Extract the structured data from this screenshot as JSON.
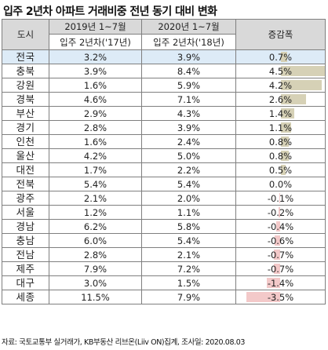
{
  "title": "입주 2년차 아파트 거래비중 전년 동기 대비 변화",
  "table": {
    "col_region": "도시",
    "col_2019_period": "2019년 1~7월",
    "col_2019_sub": "입주 2년차('17년)",
    "col_2020_period": "2020년 1~7월",
    "col_2020_sub": "입주 2년차('18년)",
    "col_change": "증감폭",
    "rows": [
      {
        "region": "전국",
        "y2019": "3.2%",
        "y2020": "3.9%",
        "change": "0.7%",
        "delta": 0.7,
        "highlight": true
      },
      {
        "region": "충북",
        "y2019": "3.9%",
        "y2020": "8.4%",
        "change": "4.5%",
        "delta": 4.5
      },
      {
        "region": "강원",
        "y2019": "1.6%",
        "y2020": "5.9%",
        "change": "4.2%",
        "delta": 4.2
      },
      {
        "region": "경북",
        "y2019": "4.6%",
        "y2020": "7.1%",
        "change": "2.6%",
        "delta": 2.6
      },
      {
        "region": "부산",
        "y2019": "2.9%",
        "y2020": "4.3%",
        "change": "1.4%",
        "delta": 1.4
      },
      {
        "region": "경기",
        "y2019": "2.8%",
        "y2020": "3.9%",
        "change": "1.1%",
        "delta": 1.1
      },
      {
        "region": "인천",
        "y2019": "1.6%",
        "y2020": "2.4%",
        "change": "0.8%",
        "delta": 0.8
      },
      {
        "region": "울산",
        "y2019": "4.2%",
        "y2020": "5.0%",
        "change": "0.8%",
        "delta": 0.8
      },
      {
        "region": "대전",
        "y2019": "1.7%",
        "y2020": "2.2%",
        "change": "0.5%",
        "delta": 0.5
      },
      {
        "region": "전북",
        "y2019": "5.4%",
        "y2020": "5.4%",
        "change": "0.0%",
        "delta": 0.0
      },
      {
        "region": "광주",
        "y2019": "2.1%",
        "y2020": "2.0%",
        "change": "-0.1%",
        "delta": -0.1
      },
      {
        "region": "서울",
        "y2019": "1.2%",
        "y2020": "1.1%",
        "change": "-0.2%",
        "delta": -0.2
      },
      {
        "region": "경남",
        "y2019": "6.2%",
        "y2020": "5.8%",
        "change": "-0.4%",
        "delta": -0.4
      },
      {
        "region": "충남",
        "y2019": "6.0%",
        "y2020": "5.4%",
        "change": "-0.6%",
        "delta": -0.6
      },
      {
        "region": "전남",
        "y2019": "2.8%",
        "y2020": "2.1%",
        "change": "-0.7%",
        "delta": -0.7
      },
      {
        "region": "제주",
        "y2019": "7.9%",
        "y2020": "7.2%",
        "change": "-0.7%",
        "delta": -0.7
      },
      {
        "region": "대구",
        "y2019": "3.0%",
        "y2020": "1.5%",
        "change": "-1.4%",
        "delta": -1.4
      },
      {
        "region": "세종",
        "y2019": "11.5%",
        "y2020": "7.9%",
        "change": "-3.5%",
        "delta": -3.5
      }
    ]
  },
  "source": "자료: 국토교통부 실거래가,  KB부동산 리브온(Liiv ON)집계, 조사일: 2020.08.03",
  "colors": {
    "positive_bar": "#d6d1b6",
    "negative_bar": "#f3c9c9",
    "highlight_row": "#ddebf7",
    "header_gray": "#d9d9d9"
  }
}
